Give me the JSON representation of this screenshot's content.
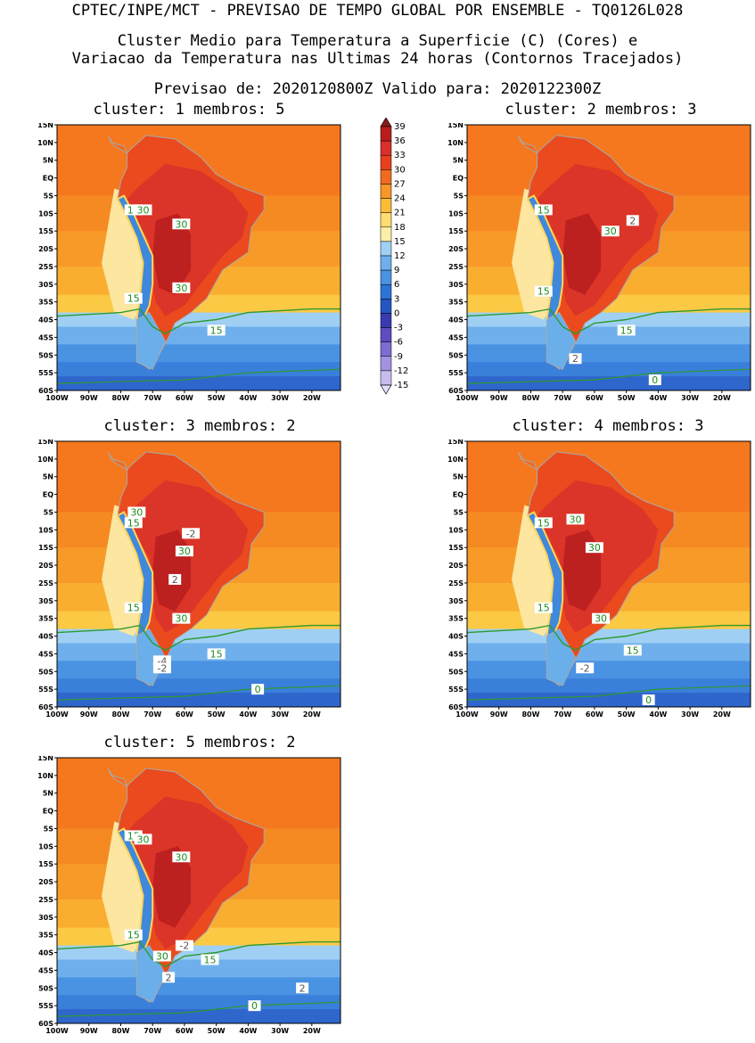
{
  "header": {
    "line1": "CPTEC/INPE/MCT - PREVISAO DE TEMPO GLOBAL POR ENSEMBLE - TQ0126L028",
    "line2": "Cluster Medio para Temperatura a Superficie (C) (Cores) e",
    "line3": "Variacao da Temperatura nas Ultimas 24 horas (Contornos Tracejados)",
    "line4": "Previsao de: 2020120800Z    Valido para: 2020122300Z"
  },
  "lat_ticks": [
    "15N",
    "10N",
    "5N",
    "EQ",
    "5S",
    "10S",
    "15S",
    "20S",
    "25S",
    "30S",
    "35S",
    "40S",
    "45S",
    "50S",
    "55S",
    "60S"
  ],
  "lon_ticks": [
    "100W",
    "90W",
    "80W",
    "70W",
    "60W",
    "50W",
    "40W",
    "30W",
    "20W"
  ],
  "colorbar": {
    "labels": [
      "39",
      "36",
      "33",
      "30",
      "27",
      "24",
      "21",
      "18",
      "15",
      "12",
      "9",
      "6",
      "3",
      "0",
      "-3",
      "-6",
      "-9",
      "-12",
      "-15"
    ],
    "colors": [
      "#8b1a1a",
      "#b81e1e",
      "#d8302a",
      "#e8401e",
      "#f26a1e",
      "#f89628",
      "#fbbd38",
      "#fddc70",
      "#fbeea6",
      "#a0d0f4",
      "#6fb0ec",
      "#4a92e2",
      "#2c74d6",
      "#2456c4",
      "#3a3ab0",
      "#5e4cc0",
      "#7e6cd0",
      "#a292e0",
      "#c8bcef",
      "#e4dcf8"
    ]
  },
  "panels": [
    {
      "title": "cluster: 1   membros: 5",
      "labels": [
        {
          "t": "15",
          "c": "green"
        },
        {
          "t": "30",
          "c": "green"
        },
        {
          "t": "30",
          "c": "green"
        },
        {
          "t": "15",
          "c": "green"
        },
        {
          "t": "30",
          "c": "green"
        },
        {
          "t": "15",
          "c": "green"
        }
      ]
    },
    {
      "title": "cluster: 2   membros: 3",
      "labels": [
        {
          "t": "15",
          "c": "green"
        },
        {
          "t": "2",
          "c": "grey"
        },
        {
          "t": "30",
          "c": "green"
        },
        {
          "t": "15",
          "c": "green"
        },
        {
          "t": "15",
          "c": "green"
        },
        {
          "t": "2",
          "c": "grey"
        },
        {
          "t": "0",
          "c": "green"
        }
      ]
    },
    {
      "title": "cluster: 3   membros: 2",
      "labels": [
        {
          "t": "15",
          "c": "green"
        },
        {
          "t": "30",
          "c": "green"
        },
        {
          "t": "-2",
          "c": "grey"
        },
        {
          "t": "30",
          "c": "green"
        },
        {
          "t": "2",
          "c": "grey"
        },
        {
          "t": "15",
          "c": "green"
        },
        {
          "t": "30",
          "c": "green"
        },
        {
          "t": "15",
          "c": "green"
        },
        {
          "t": "-4",
          "c": "grey"
        },
        {
          "t": "-2",
          "c": "grey"
        },
        {
          "t": "0",
          "c": "green"
        }
      ]
    },
    {
      "title": "cluster: 4   membros: 3",
      "labels": [
        {
          "t": "15",
          "c": "green"
        },
        {
          "t": "30",
          "c": "green"
        },
        {
          "t": "30",
          "c": "green"
        },
        {
          "t": "15",
          "c": "green"
        },
        {
          "t": "30",
          "c": "green"
        },
        {
          "t": "15",
          "c": "green"
        },
        {
          "t": "-2",
          "c": "grey"
        },
        {
          "t": "0",
          "c": "green"
        }
      ]
    },
    {
      "title": "cluster: 5   membros: 2",
      "labels": [
        {
          "t": "15",
          "c": "green"
        },
        {
          "t": "30",
          "c": "green"
        },
        {
          "t": "30",
          "c": "green"
        },
        {
          "t": "15",
          "c": "green"
        },
        {
          "t": "-2",
          "c": "grey"
        },
        {
          "t": "30",
          "c": "green"
        },
        {
          "t": "15",
          "c": "green"
        },
        {
          "t": "2",
          "c": "grey"
        },
        {
          "t": "2",
          "c": "grey"
        },
        {
          "t": "0",
          "c": "green"
        }
      ]
    }
  ]
}
